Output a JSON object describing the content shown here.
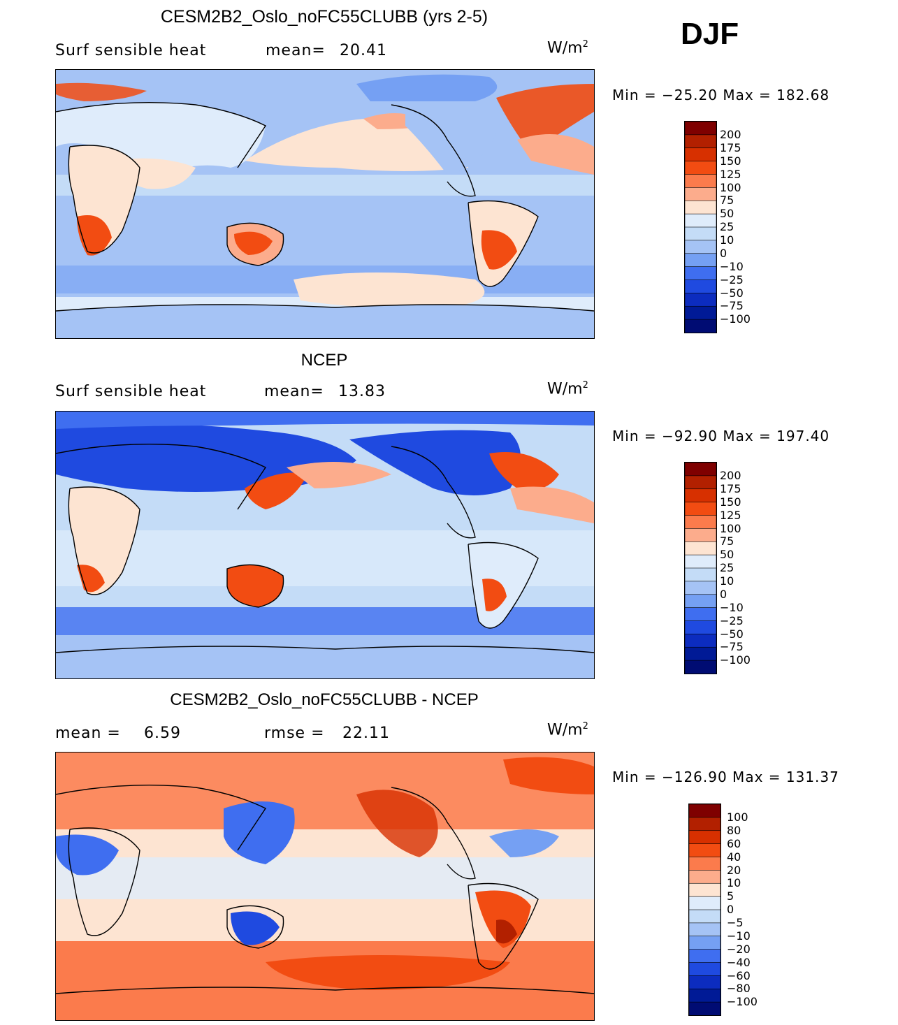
{
  "season": "DJF",
  "panels": [
    {
      "title": "CESM2B2_Oslo_noFC55CLUBB (yrs 2-5)",
      "left_label": "Surf sensible heat",
      "stat_label": "mean=",
      "stat_value": "20.41",
      "units": "W/m",
      "units_sup": "2",
      "minmax": "Min = −25.20 Max = 182.68",
      "colorbar": {
        "colors": [
          "#7f0000",
          "#b22000",
          "#d73000",
          "#f24c12",
          "#fb7b4c",
          "#fcac8c",
          "#fde4d2",
          "#dfecfb",
          "#c4dcf7",
          "#a5c3f5",
          "#75a0f3",
          "#3f6ef0",
          "#1f4ae0",
          "#0c2cbf",
          "#001a96",
          "#000c73"
        ],
        "labels": [
          "200",
          "175",
          "150",
          "125",
          "100",
          "75",
          "50",
          "25",
          "10",
          "0",
          "−10",
          "−25",
          "−50",
          "−75",
          "−100"
        ]
      }
    },
    {
      "title": "NCEP",
      "left_label": "Surf sensible heat",
      "stat_label": "mean=",
      "stat_value": "13.83",
      "units": "W/m",
      "units_sup": "2",
      "minmax": "Min = −92.90 Max = 197.40",
      "colorbar": {
        "colors": [
          "#7f0000",
          "#b22000",
          "#d73000",
          "#f24c12",
          "#fb7b4c",
          "#fcac8c",
          "#fde4d2",
          "#dfecfb",
          "#c4dcf7",
          "#a5c3f5",
          "#75a0f3",
          "#3f6ef0",
          "#1f4ae0",
          "#0c2cbf",
          "#001a96",
          "#000c73"
        ],
        "labels": [
          "200",
          "175",
          "150",
          "125",
          "100",
          "75",
          "50",
          "25",
          "10",
          "0",
          "−10",
          "−25",
          "−50",
          "−75",
          "−100"
        ]
      }
    },
    {
      "title": "CESM2B2_Oslo_noFC55CLUBB - NCEP",
      "left_label": "mean =",
      "left_value": "6.59",
      "stat_label": "rmse =",
      "stat_value": "22.11",
      "units": "W/m",
      "units_sup": "2",
      "minmax": "Min = −126.90 Max = 131.37",
      "colorbar": {
        "colors": [
          "#7f0000",
          "#b22000",
          "#d73000",
          "#f24c12",
          "#fb7b4c",
          "#fcac8c",
          "#fde4d2",
          "#dfecfb",
          "#c4dcf7",
          "#a5c3f5",
          "#75a0f3",
          "#3f6ef0",
          "#1f4ae0",
          "#0c2cbf",
          "#001a96",
          "#000c73"
        ],
        "labels": [
          "100",
          "80",
          "60",
          "40",
          "20",
          "10",
          "5",
          "0",
          "−5",
          "−10",
          "−20",
          "−40",
          "−60",
          "−80",
          "−100"
        ]
      }
    }
  ]
}
